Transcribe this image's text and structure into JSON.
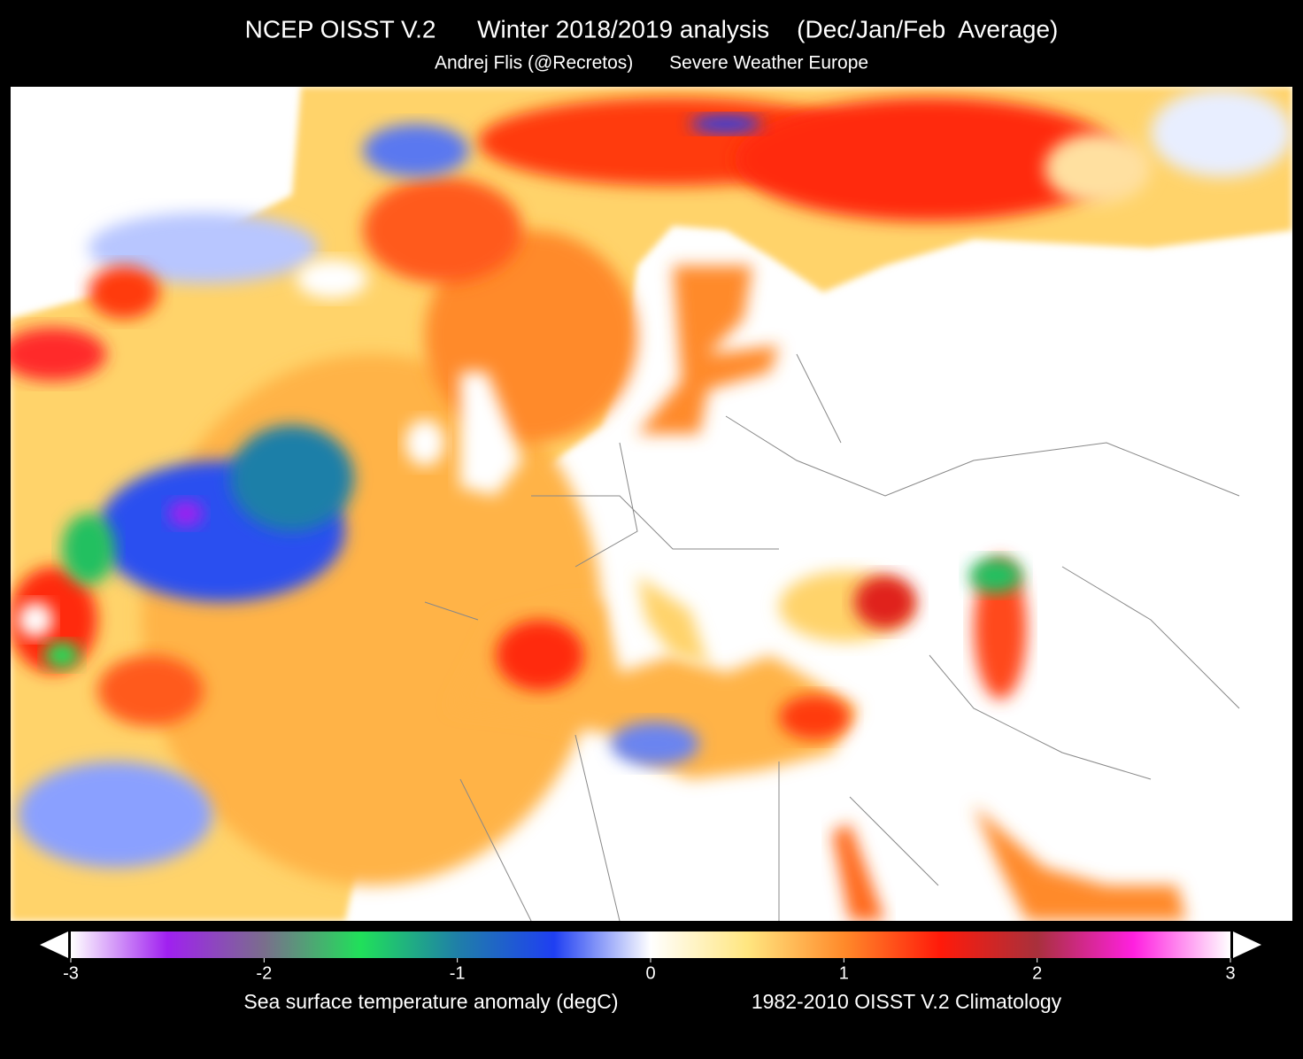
{
  "header": {
    "title": "NCEP OISST V.2      Winter 2018/2019 analysis    (Dec/Jan/Feb  Average)",
    "subtitle": "Andrej Flis (@Recretos)       Severe Weather Europe"
  },
  "colorbar": {
    "range": [
      -3,
      3
    ],
    "ticks": [
      -3,
      -2,
      -1,
      0,
      1,
      2,
      3
    ],
    "colors": [
      "#ffffff",
      "#a020f0",
      "#7a6e8c",
      "#20e05a",
      "#1f7fa8",
      "#1f3ff2",
      "#ffffff",
      "#ffe680",
      "#ff8a2a",
      "#ff1a0a",
      "#a8303c",
      "#ff20e0",
      "#ffffff"
    ],
    "label": "Sea surface temperature anomaly (degC)",
    "climatology": "1982-2010 OISST V.2 Climatology"
  }
}
